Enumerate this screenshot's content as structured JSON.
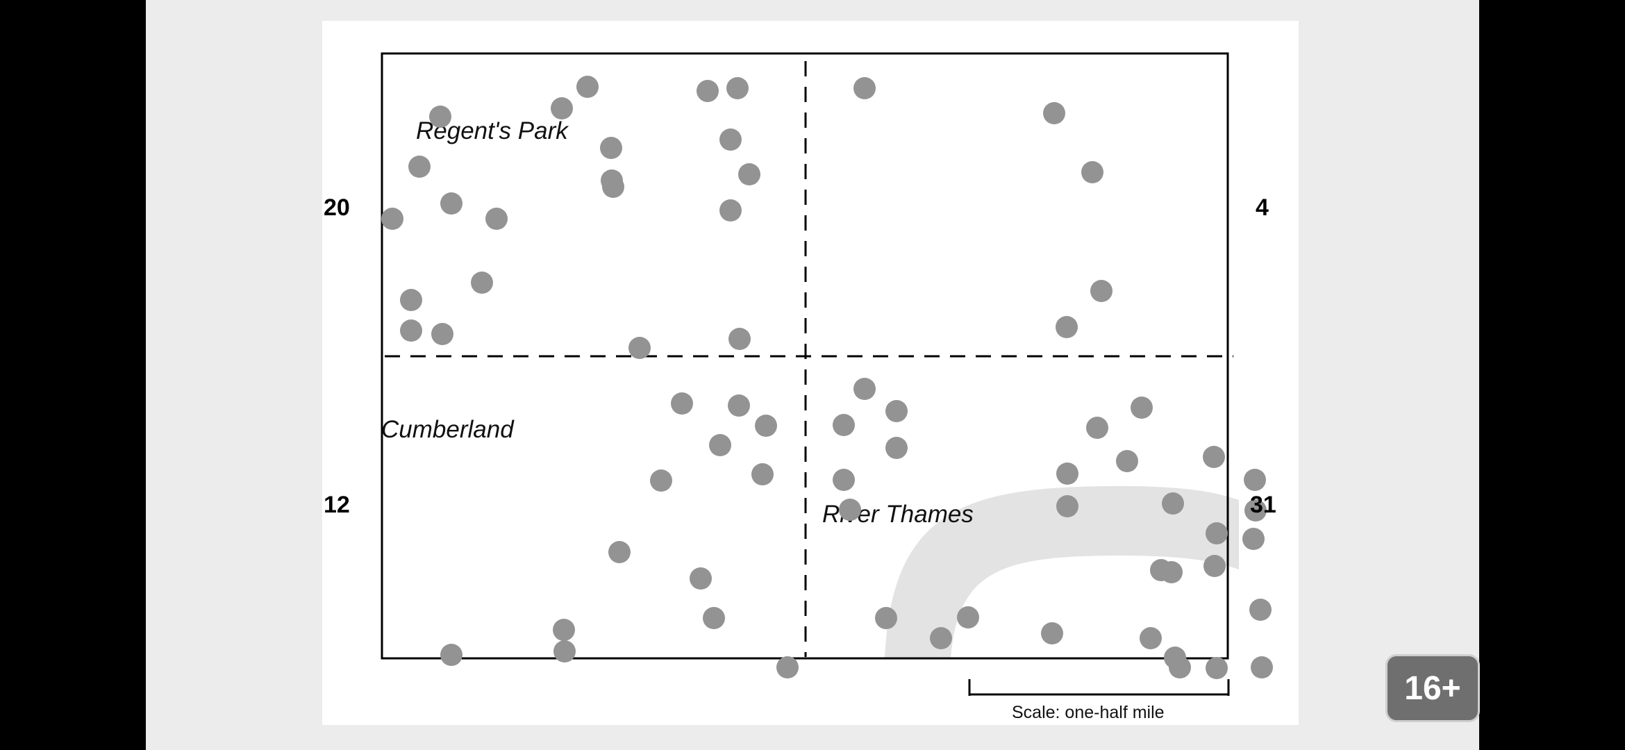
{
  "map": {
    "labels": {
      "regents_park": "Regent's Park",
      "cumberland": "Cumberland",
      "river_thames": "River Thames"
    },
    "quadrant_counts": {
      "top_left": "20",
      "top_right": "4",
      "bottom_left": "12",
      "bottom_right": "31"
    },
    "scale_label": "Scale: one-half mile",
    "colors": {
      "marker": "#939393",
      "river": "#e3e3e3",
      "frame": "#000000"
    }
  },
  "badge": {
    "rating": "16+"
  }
}
